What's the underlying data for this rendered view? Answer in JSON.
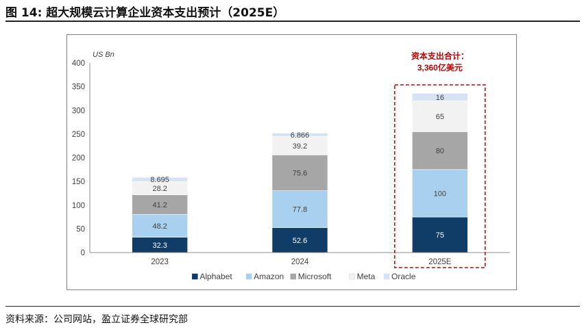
{
  "figure": {
    "title": "图 14: 超大规模云计算企业资本支出预计（2025E）",
    "source": "资料来源：公司网站，盈立证券全球研究部"
  },
  "chart_data": {
    "type": "bar",
    "stacked": true,
    "categories": [
      "2023",
      "2024",
      "2025E"
    ],
    "series": [
      {
        "name": "Alphabet",
        "color": "#0f3d68",
        "values": [
          32.3,
          52.6,
          75
        ],
        "labels": [
          "32.3",
          "52.6",
          "75"
        ]
      },
      {
        "name": "Amazon",
        "color": "#a9d0ee",
        "values": [
          48.2,
          77.8,
          100
        ],
        "labels": [
          "48.2",
          "77.8",
          "100"
        ]
      },
      {
        "name": "Microsoft",
        "color": "#a6a6a6",
        "values": [
          41.2,
          75.6,
          80
        ],
        "labels": [
          "41.2",
          "75.6",
          "80"
        ]
      },
      {
        "name": "Meta",
        "color": "#f2f2f2",
        "values": [
          28.2,
          39.2,
          65
        ],
        "labels": [
          "28.2",
          "39.2",
          "65"
        ]
      },
      {
        "name": "Oracle",
        "color": "#d5e3f5",
        "values": [
          8.695,
          6.866,
          16
        ],
        "labels": [
          "8.695",
          "6.866",
          "16"
        ]
      }
    ],
    "unit_label": "US Bn",
    "ylim": [
      0,
      400
    ],
    "yticks": [
      0,
      50,
      100,
      150,
      200,
      250,
      300,
      350,
      400
    ],
    "grid": false,
    "legend_position": "bottom",
    "annotation": {
      "line1": "资本支出合计：",
      "line2": "3,360亿美元",
      "color": "#c00000",
      "highlight_category": "2025E"
    }
  }
}
